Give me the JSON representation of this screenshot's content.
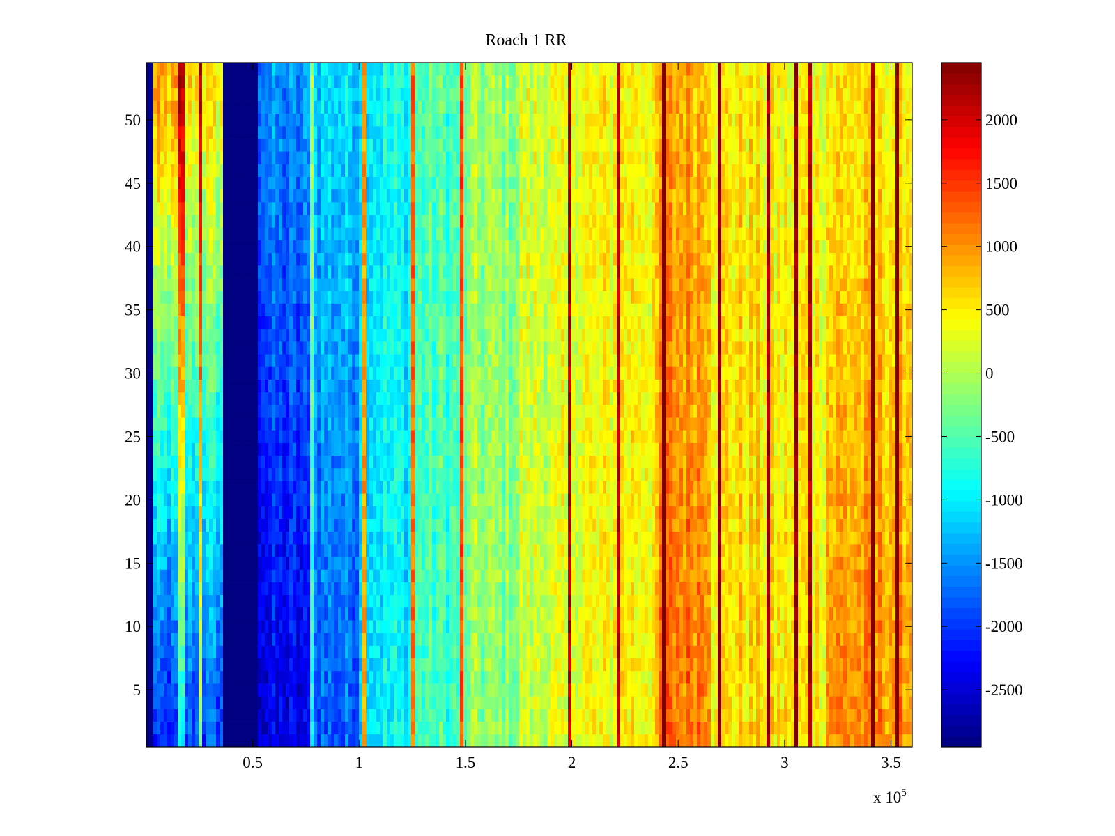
{
  "chart_data": {
    "type": "heatmap",
    "title": "Roach 1 RR",
    "xlabel": "",
    "ylabel": "",
    "x_multiplier_label": "x 10",
    "x_multiplier_exponent": "5",
    "xlim": [
      0,
      3.6
    ],
    "ylim": [
      0.5,
      54.5
    ],
    "x_ticks": [
      {
        "value": 0.5,
        "label": "0.5"
      },
      {
        "value": 1.0,
        "label": "1"
      },
      {
        "value": 1.5,
        "label": "1.5"
      },
      {
        "value": 2.0,
        "label": "2"
      },
      {
        "value": 2.5,
        "label": "2.5"
      },
      {
        "value": 3.0,
        "label": "3"
      },
      {
        "value": 3.5,
        "label": "3.5"
      }
    ],
    "y_ticks": [
      {
        "value": 5,
        "label": "5"
      },
      {
        "value": 10,
        "label": "10"
      },
      {
        "value": 15,
        "label": "15"
      },
      {
        "value": 20,
        "label": "20"
      },
      {
        "value": 25,
        "label": "25"
      },
      {
        "value": 30,
        "label": "30"
      },
      {
        "value": 35,
        "label": "35"
      },
      {
        "value": 40,
        "label": "40"
      },
      {
        "value": 45,
        "label": "45"
      },
      {
        "value": 50,
        "label": "50"
      }
    ],
    "colorbar": {
      "colormap": "jet",
      "range": [
        -2950,
        2450
      ],
      "ticks": [
        {
          "value": 2000,
          "label": "2000"
        },
        {
          "value": 1500,
          "label": "1500"
        },
        {
          "value": 1000,
          "label": "1000"
        },
        {
          "value": 500,
          "label": "500"
        },
        {
          "value": 0,
          "label": "0"
        },
        {
          "value": -500,
          "label": "-500"
        },
        {
          "value": -1000,
          "label": "-1000"
        },
        {
          "value": -1500,
          "label": "-1500"
        },
        {
          "value": -2000,
          "label": "-2000"
        },
        {
          "value": -2500,
          "label": "-2500"
        }
      ]
    },
    "rows": 54,
    "column_profile": [
      {
        "x_start": 0.0,
        "x_end": 0.03,
        "bottom": -2900,
        "top": -2900
      },
      {
        "x_start": 0.03,
        "x_end": 0.14,
        "bottom": -2200,
        "top": 900
      },
      {
        "x_start": 0.14,
        "x_end": 0.18,
        "bottom": -1100,
        "top": 2150
      },
      {
        "x_start": 0.18,
        "x_end": 0.36,
        "bottom": -1900,
        "top": 600
      },
      {
        "x_start": 0.36,
        "x_end": 0.52,
        "bottom": -2950,
        "top": -2950
      },
      {
        "x_start": 0.52,
        "x_end": 0.78,
        "bottom": -2500,
        "top": -1500
      },
      {
        "x_start": 0.78,
        "x_end": 1.0,
        "bottom": -1800,
        "top": -1100
      },
      {
        "x_start": 1.0,
        "x_end": 1.25,
        "bottom": -1000,
        "top": -900
      },
      {
        "x_start": 1.25,
        "x_end": 1.5,
        "bottom": -600,
        "top": -500
      },
      {
        "x_start": 1.5,
        "x_end": 1.75,
        "bottom": -200,
        "top": -100
      },
      {
        "x_start": 1.75,
        "x_end": 2.0,
        "bottom": 150,
        "top": 250
      },
      {
        "x_start": 2.0,
        "x_end": 2.2,
        "bottom": 350,
        "top": 400
      },
      {
        "x_start": 2.2,
        "x_end": 2.4,
        "bottom": 500,
        "top": 500
      },
      {
        "x_start": 2.4,
        "x_end": 2.65,
        "bottom": 1200,
        "top": 850
      },
      {
        "x_start": 2.65,
        "x_end": 2.9,
        "bottom": 600,
        "top": 550
      },
      {
        "x_start": 2.9,
        "x_end": 3.2,
        "bottom": 550,
        "top": 400
      },
      {
        "x_start": 3.2,
        "x_end": 3.6,
        "bottom": 1050,
        "top": 500
      }
    ],
    "bright_stripes_x": [
      0.25,
      0.28,
      0.78,
      1.02,
      1.25,
      1.48,
      1.72,
      1.99,
      2.22,
      2.43,
      2.69,
      2.92,
      3.05,
      3.12,
      3.41,
      3.53
    ],
    "noise_amplitude": 400
  }
}
